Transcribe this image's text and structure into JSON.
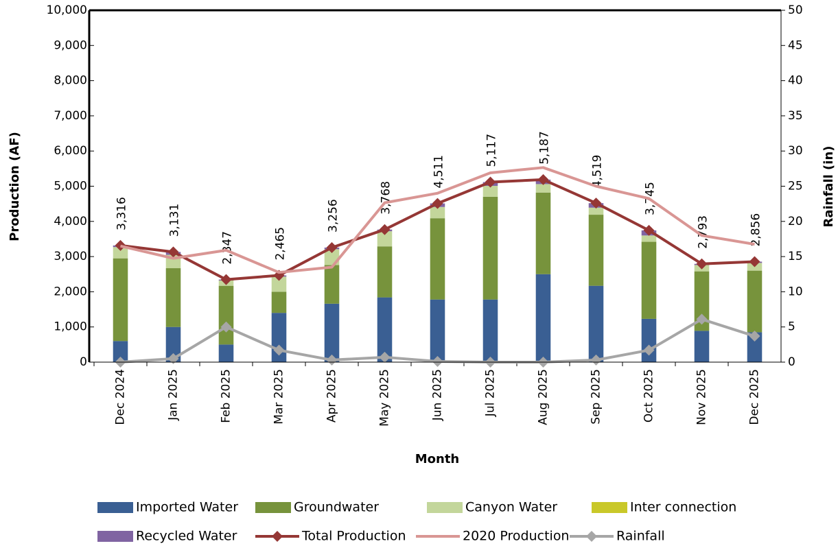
{
  "chart_data": {
    "type": "bar",
    "y_label": "Production (AF)",
    "y2_label": "Rainfall (in)",
    "x_label": "Month",
    "categories": [
      "Dec 2024",
      "Jan 2025",
      "Feb 2025",
      "Mar 2025",
      "Apr 2025",
      "May 2025",
      "Jun 2025",
      "Jul 2025",
      "Aug 2025",
      "Sep 2025",
      "Oct 2025",
      "Nov 2025",
      "Dec 2025"
    ],
    "ylim": [
      0,
      10000
    ],
    "yticks": [
      0,
      {
        "value": 1000,
        "label": "1,000"
      },
      {
        "value": 2000,
        "label": "2,000"
      },
      {
        "value": 3000,
        "label": "3,000"
      },
      {
        "value": 4000,
        "label": "4,000"
      },
      {
        "value": 5000,
        "label": "5,000"
      },
      {
        "value": 6000,
        "label": "6,000"
      },
      {
        "value": 7000,
        "label": "7,000"
      },
      {
        "value": 8000,
        "label": "8,000"
      },
      {
        "value": 9000,
        "label": "9,000"
      },
      {
        "value": 10000,
        "label": "10,000"
      }
    ],
    "y2lim": [
      0,
      50
    ],
    "y2ticks": [
      0,
      5,
      10,
      15,
      20,
      25,
      30,
      35,
      40,
      45,
      50
    ],
    "stacked": true,
    "series": [
      {
        "name": "Imported Water",
        "type": "bar",
        "color": "#3a5f93",
        "values": [
          600,
          1000,
          500,
          1400,
          1660,
          1840,
          1780,
          1780,
          2500,
          2170,
          1230,
          890,
          850
        ]
      },
      {
        "name": "Groundwater",
        "type": "bar",
        "color": "#77933c",
        "values": [
          2350,
          1670,
          1670,
          600,
          1100,
          1450,
          2310,
          2920,
          2320,
          2020,
          2190,
          1690,
          1750
        ]
      },
      {
        "name": "Canyon Water",
        "type": "bar",
        "color": "#c3d69b",
        "values": [
          320,
          380,
          150,
          430,
          450,
          430,
          320,
          310,
          240,
          200,
          180,
          180,
          220
        ]
      },
      {
        "name": "Inter connection",
        "type": "bar",
        "color": "#c9c829",
        "values": [
          0,
          0,
          0,
          0,
          0,
          0,
          0,
          0,
          0,
          0,
          0,
          0,
          0
        ]
      },
      {
        "name": "Recycled Water",
        "type": "bar",
        "color": "#8064a2",
        "values": [
          46,
          81,
          27,
          35,
          46,
          48,
          101,
          107,
          127,
          129,
          145,
          33,
          36
        ]
      },
      {
        "name": "Total Production",
        "type": "line",
        "marker": "diamond",
        "color": "#953735",
        "values": [
          3316,
          3131,
          2347,
          2465,
          3256,
          3768,
          4511,
          5117,
          5187,
          4519,
          3745,
          2793,
          2856
        ],
        "value_labels": [
          "3,316",
          "3,131",
          "2,347",
          "2,465",
          "3,256",
          "3,768",
          "4,511",
          "5,117",
          "5,187",
          "4,519",
          "3,745",
          "2,793",
          "2,856"
        ]
      },
      {
        "name": "2020 Production",
        "type": "line",
        "color": "#d99694",
        "values": [
          3300,
          2950,
          3180,
          2550,
          2700,
          4530,
          4800,
          5380,
          5530,
          5000,
          4650,
          3600,
          3350
        ]
      },
      {
        "name": "Rainfall",
        "type": "line",
        "marker": "diamond",
        "axis": "y2",
        "color": "#a6a6a6",
        "values": [
          0,
          0.5,
          5,
          1.7,
          0.3,
          0.7,
          0.1,
          0,
          0,
          0.3,
          1.7,
          6.1,
          3.7
        ]
      }
    ]
  }
}
